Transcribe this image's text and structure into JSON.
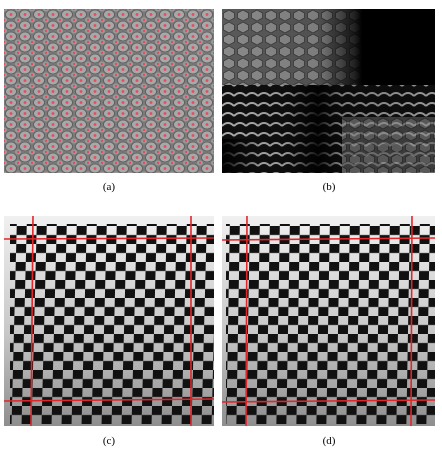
{
  "figure": {
    "panels": [
      {
        "id": "a",
        "caption": "(a)"
      },
      {
        "id": "b",
        "caption": "(b)"
      },
      {
        "id": "c",
        "caption": "(c)"
      },
      {
        "id": "d",
        "caption": "(d)"
      }
    ]
  },
  "colors": {
    "line_red": "#e0262b",
    "dot_red": "#e84a5f",
    "checker_dark": "#111111",
    "checker_light_top": "#f2f2f2",
    "checker_light_bottom": "#8c8c8c",
    "pattern_bg": "#7a7a7a"
  }
}
